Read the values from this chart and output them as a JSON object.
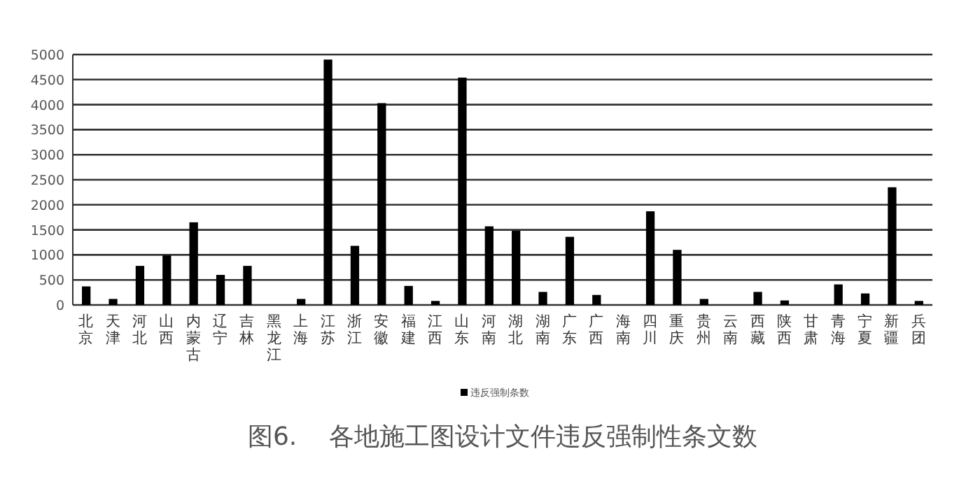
{
  "chart_data": {
    "type": "bar",
    "title": "图6.    各地施工图设计文件违反强制性条文数",
    "categories": [
      "北京",
      "天津",
      "河北",
      "山西",
      "内蒙古",
      "辽宁",
      "吉林",
      "黑龙江",
      "上海",
      "江苏",
      "浙江",
      "安徽",
      "福建",
      "江西",
      "山东",
      "河南",
      "湖北",
      "湖南",
      "广东",
      "广西",
      "海南",
      "四川",
      "重庆",
      "贵州",
      "云南",
      "西藏",
      "陕西",
      "甘肃",
      "青海",
      "宁夏",
      "新疆",
      "兵团"
    ],
    "series": [
      {
        "name": "违反强制条数",
        "color": "#000000",
        "values": [
          370,
          120,
          780,
          990,
          1650,
          600,
          780,
          0,
          120,
          4900,
          1180,
          4030,
          380,
          80,
          4540,
          1570,
          1480,
          260,
          1360,
          200,
          0,
          1870,
          1100,
          120,
          0,
          260,
          90,
          0,
          410,
          230,
          2350,
          80
        ]
      }
    ],
    "ylim": [
      0,
      5000
    ],
    "yticks": [
      0,
      500,
      1000,
      1500,
      2000,
      2500,
      3000,
      3500,
      4000,
      4500,
      5000
    ],
    "grid": "y",
    "legend": "bottom"
  }
}
